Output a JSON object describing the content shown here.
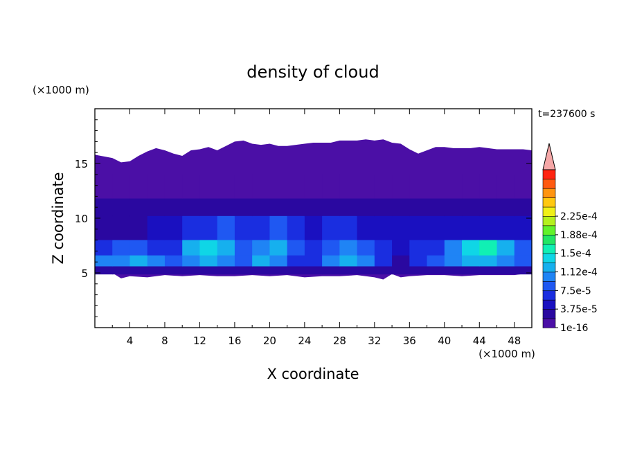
{
  "chart_data": {
    "type": "heatmap",
    "title": "density of cloud",
    "time_label": "t=237600 s",
    "xlabel": "X coordinate",
    "ylabel": "Z coordinate",
    "x_unit": "(×1000 m)",
    "y_unit": "(×1000 m)",
    "xlim": [
      0,
      50
    ],
    "ylim": [
      0,
      20
    ],
    "x_ticks": [
      4,
      8,
      12,
      16,
      20,
      24,
      28,
      32,
      36,
      40,
      44,
      48
    ],
    "y_ticks": [
      5,
      10,
      15
    ],
    "colorbar": {
      "min": 1e-16,
      "max": 0.00025,
      "step": 1.875e-05,
      "extend": "max",
      "tick_labels": [
        "1e-16",
        "3.75e-5",
        "7.5e-5",
        "1.12e-4",
        "1.5e-4",
        "1.88e-4",
        "2.25e-4"
      ],
      "colors": [
        "#4b0fa6",
        "#2a08a0",
        "#1a10c0",
        "#1a2ee0",
        "#1f58f2",
        "#1f84f5",
        "#16b0ee",
        "#0fd6e6",
        "#10f0b4",
        "#22e664",
        "#62f22a",
        "#b4f01c",
        "#f0f018",
        "#ffc810",
        "#ff9410",
        "#ff5a10",
        "#ff2410"
      ],
      "over_color": "#f5a7a7"
    },
    "cloud_layer": {
      "top_boundary": [
        [
          0,
          15.8
        ],
        [
          2,
          15.5
        ],
        [
          3,
          15.1
        ],
        [
          4,
          15.2
        ],
        [
          5,
          15.7
        ],
        [
          6,
          16.1
        ],
        [
          7,
          16.4
        ],
        [
          8,
          16.2
        ],
        [
          9,
          15.9
        ],
        [
          10,
          15.7
        ],
        [
          11,
          16.2
        ],
        [
          12,
          16.3
        ],
        [
          13,
          16.5
        ],
        [
          14,
          16.2
        ],
        [
          15,
          16.6
        ],
        [
          16,
          17.0
        ],
        [
          17,
          17.1
        ],
        [
          18,
          16.8
        ],
        [
          19,
          16.7
        ],
        [
          20,
          16.8
        ],
        [
          21,
          16.6
        ],
        [
          22,
          16.6
        ],
        [
          23,
          16.7
        ],
        [
          24,
          16.8
        ],
        [
          25,
          16.9
        ],
        [
          26,
          16.9
        ],
        [
          27,
          16.9
        ],
        [
          28,
          17.1
        ],
        [
          29,
          17.1
        ],
        [
          30,
          17.1
        ],
        [
          31,
          17.2
        ],
        [
          32,
          17.1
        ],
        [
          33,
          17.2
        ],
        [
          34,
          16.9
        ],
        [
          35,
          16.8
        ],
        [
          36,
          16.3
        ],
        [
          37,
          15.9
        ],
        [
          38,
          16.2
        ],
        [
          39,
          16.5
        ],
        [
          40,
          16.5
        ],
        [
          41,
          16.4
        ],
        [
          42,
          16.4
        ],
        [
          43,
          16.4
        ],
        [
          44,
          16.5
        ],
        [
          45,
          16.4
        ],
        [
          46,
          16.3
        ],
        [
          47,
          16.3
        ],
        [
          48,
          16.3
        ],
        [
          49,
          16.3
        ],
        [
          50,
          16.2
        ]
      ],
      "bottom_boundary": [
        [
          0,
          5.3
        ],
        [
          2,
          5.0
        ],
        [
          3,
          4.5
        ],
        [
          4,
          4.7
        ],
        [
          6,
          4.6
        ],
        [
          8,
          4.8
        ],
        [
          10,
          4.7
        ],
        [
          12,
          4.8
        ],
        [
          14,
          4.7
        ],
        [
          16,
          4.7
        ],
        [
          18,
          4.8
        ],
        [
          20,
          4.7
        ],
        [
          22,
          4.8
        ],
        [
          24,
          4.6
        ],
        [
          26,
          4.7
        ],
        [
          28,
          4.7
        ],
        [
          30,
          4.8
        ],
        [
          32,
          4.6
        ],
        [
          33,
          4.4
        ],
        [
          34,
          4.9
        ],
        [
          35,
          4.6
        ],
        [
          36,
          4.7
        ],
        [
          38,
          4.8
        ],
        [
          40,
          4.8
        ],
        [
          42,
          4.7
        ],
        [
          44,
          4.8
        ],
        [
          46,
          4.8
        ],
        [
          48,
          4.8
        ],
        [
          50,
          5.0
        ]
      ]
    },
    "cells": [
      {
        "x": 0,
        "z": 13,
        "v": 1e-05
      },
      {
        "x": 0,
        "z": 11,
        "v": 2e-05
      },
      {
        "x": 0,
        "z": 9,
        "v": 3e-05
      },
      {
        "x": 0,
        "z": 7,
        "v": 6e-05
      },
      {
        "x": 0,
        "z": 6,
        "v": 0.0001
      },
      {
        "x": 0,
        "z": 5,
        "v": 2e-05
      },
      {
        "x": 2,
        "z": 13,
        "v": 1e-05
      },
      {
        "x": 2,
        "z": 11,
        "v": 2e-05
      },
      {
        "x": 2,
        "z": 9,
        "v": 3e-05
      },
      {
        "x": 2,
        "z": 7,
        "v": 8e-05
      },
      {
        "x": 2,
        "z": 6,
        "v": 0.00011
      },
      {
        "x": 2,
        "z": 5,
        "v": 2e-05
      },
      {
        "x": 4,
        "z": 13,
        "v": 1e-05
      },
      {
        "x": 4,
        "z": 11,
        "v": 2e-05
      },
      {
        "x": 4,
        "z": 9,
        "v": 3e-05
      },
      {
        "x": 4,
        "z": 7,
        "v": 9e-05
      },
      {
        "x": 4,
        "z": 6,
        "v": 0.00012
      },
      {
        "x": 4,
        "z": 5,
        "v": 2e-05
      },
      {
        "x": 6,
        "z": 13,
        "v": 1e-05
      },
      {
        "x": 6,
        "z": 11,
        "v": 2e-05
      },
      {
        "x": 6,
        "z": 9,
        "v": 4e-05
      },
      {
        "x": 6,
        "z": 7,
        "v": 7e-05
      },
      {
        "x": 6,
        "z": 6,
        "v": 0.0001
      },
      {
        "x": 6,
        "z": 5,
        "v": 2e-05
      },
      {
        "x": 8,
        "z": 13,
        "v": 1e-05
      },
      {
        "x": 8,
        "z": 11,
        "v": 2e-05
      },
      {
        "x": 8,
        "z": 9,
        "v": 5e-05
      },
      {
        "x": 8,
        "z": 7,
        "v": 6e-05
      },
      {
        "x": 8,
        "z": 6,
        "v": 8e-05
      },
      {
        "x": 8,
        "z": 5,
        "v": 2e-05
      },
      {
        "x": 10,
        "z": 13,
        "v": 1e-05
      },
      {
        "x": 10,
        "z": 11,
        "v": 2e-05
      },
      {
        "x": 10,
        "z": 9,
        "v": 6e-05
      },
      {
        "x": 10,
        "z": 7,
        "v": 0.00013
      },
      {
        "x": 10,
        "z": 6,
        "v": 0.00011
      },
      {
        "x": 10,
        "z": 5,
        "v": 2e-05
      },
      {
        "x": 12,
        "z": 13,
        "v": 1e-05
      },
      {
        "x": 12,
        "z": 11,
        "v": 2e-05
      },
      {
        "x": 12,
        "z": 9,
        "v": 7e-05
      },
      {
        "x": 12,
        "z": 7,
        "v": 0.00015
      },
      {
        "x": 12,
        "z": 6,
        "v": 0.00012
      },
      {
        "x": 12,
        "z": 5,
        "v": 2e-05
      },
      {
        "x": 14,
        "z": 13,
        "v": 1e-05
      },
      {
        "x": 14,
        "z": 11,
        "v": 3e-05
      },
      {
        "x": 14,
        "z": 9,
        "v": 8e-05
      },
      {
        "x": 14,
        "z": 7,
        "v": 0.00012
      },
      {
        "x": 14,
        "z": 6,
        "v": 0.0001
      },
      {
        "x": 14,
        "z": 5,
        "v": 2e-05
      },
      {
        "x": 16,
        "z": 13,
        "v": 1e-05
      },
      {
        "x": 16,
        "z": 11,
        "v": 2e-05
      },
      {
        "x": 16,
        "z": 9,
        "v": 6e-05
      },
      {
        "x": 16,
        "z": 7,
        "v": 9e-05
      },
      {
        "x": 16,
        "z": 6,
        "v": 8e-05
      },
      {
        "x": 16,
        "z": 5,
        "v": 2e-05
      },
      {
        "x": 18,
        "z": 13,
        "v": 1e-05
      },
      {
        "x": 18,
        "z": 11,
        "v": 2e-05
      },
      {
        "x": 18,
        "z": 9,
        "v": 7e-05
      },
      {
        "x": 18,
        "z": 7,
        "v": 0.00011
      },
      {
        "x": 18,
        "z": 6,
        "v": 0.00012
      },
      {
        "x": 18,
        "z": 5,
        "v": 2e-05
      },
      {
        "x": 20,
        "z": 13,
        "v": 1e-05
      },
      {
        "x": 20,
        "z": 11,
        "v": 2e-05
      },
      {
        "x": 20,
        "z": 9,
        "v": 8e-05
      },
      {
        "x": 20,
        "z": 7,
        "v": 0.00012
      },
      {
        "x": 20,
        "z": 6,
        "v": 0.00011
      },
      {
        "x": 20,
        "z": 5,
        "v": 2e-05
      },
      {
        "x": 22,
        "z": 13,
        "v": 1e-05
      },
      {
        "x": 22,
        "z": 11,
        "v": 2e-05
      },
      {
        "x": 22,
        "z": 9,
        "v": 6e-05
      },
      {
        "x": 22,
        "z": 7,
        "v": 9e-05
      },
      {
        "x": 22,
        "z": 6,
        "v": 7e-05
      },
      {
        "x": 22,
        "z": 5,
        "v": 2e-05
      },
      {
        "x": 24,
        "z": 13,
        "v": 1e-05
      },
      {
        "x": 24,
        "z": 11,
        "v": 2e-05
      },
      {
        "x": 24,
        "z": 9,
        "v": 5e-05
      },
      {
        "x": 24,
        "z": 7,
        "v": 6e-05
      },
      {
        "x": 24,
        "z": 6,
        "v": 6e-05
      },
      {
        "x": 24,
        "z": 5,
        "v": 2e-05
      },
      {
        "x": 26,
        "z": 13,
        "v": 1e-05
      },
      {
        "x": 26,
        "z": 11,
        "v": 2e-05
      },
      {
        "x": 26,
        "z": 9,
        "v": 6e-05
      },
      {
        "x": 26,
        "z": 7,
        "v": 8e-05
      },
      {
        "x": 26,
        "z": 6,
        "v": 0.0001
      },
      {
        "x": 26,
        "z": 5,
        "v": 2e-05
      },
      {
        "x": 28,
        "z": 13,
        "v": 1e-05
      },
      {
        "x": 28,
        "z": 11,
        "v": 2e-05
      },
      {
        "x": 28,
        "z": 9,
        "v": 6e-05
      },
      {
        "x": 28,
        "z": 7,
        "v": 0.0001
      },
      {
        "x": 28,
        "z": 6,
        "v": 0.00012
      },
      {
        "x": 28,
        "z": 5,
        "v": 2e-05
      },
      {
        "x": 30,
        "z": 13,
        "v": 1e-05
      },
      {
        "x": 30,
        "z": 11,
        "v": 2e-05
      },
      {
        "x": 30,
        "z": 9,
        "v": 5e-05
      },
      {
        "x": 30,
        "z": 7,
        "v": 8e-05
      },
      {
        "x": 30,
        "z": 6,
        "v": 0.0001
      },
      {
        "x": 30,
        "z": 5,
        "v": 2e-05
      },
      {
        "x": 32,
        "z": 13,
        "v": 1e-05
      },
      {
        "x": 32,
        "z": 11,
        "v": 2e-05
      },
      {
        "x": 32,
        "z": 9,
        "v": 5e-05
      },
      {
        "x": 32,
        "z": 7,
        "v": 7e-05
      },
      {
        "x": 32,
        "z": 6,
        "v": 7e-05
      },
      {
        "x": 32,
        "z": 5,
        "v": 2e-05
      },
      {
        "x": 34,
        "z": 13,
        "v": 1e-05
      },
      {
        "x": 34,
        "z": 11,
        "v": 2e-05
      },
      {
        "x": 34,
        "z": 9,
        "v": 4e-05
      },
      {
        "x": 34,
        "z": 7,
        "v": 4e-05
      },
      {
        "x": 34,
        "z": 6,
        "v": 3e-05
      },
      {
        "x": 34,
        "z": 5,
        "v": 2e-05
      },
      {
        "x": 36,
        "z": 13,
        "v": 1e-05
      },
      {
        "x": 36,
        "z": 11,
        "v": 2e-05
      },
      {
        "x": 36,
        "z": 9,
        "v": 4e-05
      },
      {
        "x": 36,
        "z": 7,
        "v": 6e-05
      },
      {
        "x": 36,
        "z": 6,
        "v": 6e-05
      },
      {
        "x": 36,
        "z": 5,
        "v": 2e-05
      },
      {
        "x": 38,
        "z": 13,
        "v": 1e-05
      },
      {
        "x": 38,
        "z": 11,
        "v": 2e-05
      },
      {
        "x": 38,
        "z": 9,
        "v": 4e-05
      },
      {
        "x": 38,
        "z": 7,
        "v": 7e-05
      },
      {
        "x": 38,
        "z": 6,
        "v": 8e-05
      },
      {
        "x": 38,
        "z": 5,
        "v": 2e-05
      },
      {
        "x": 40,
        "z": 13,
        "v": 1e-05
      },
      {
        "x": 40,
        "z": 11,
        "v": 2e-05
      },
      {
        "x": 40,
        "z": 9,
        "v": 4e-05
      },
      {
        "x": 40,
        "z": 7,
        "v": 0.0001
      },
      {
        "x": 40,
        "z": 6,
        "v": 0.0001
      },
      {
        "x": 40,
        "z": 5,
        "v": 2e-05
      },
      {
        "x": 42,
        "z": 13,
        "v": 1e-05
      },
      {
        "x": 42,
        "z": 11,
        "v": 2e-05
      },
      {
        "x": 42,
        "z": 9,
        "v": 4e-05
      },
      {
        "x": 42,
        "z": 7,
        "v": 0.00014
      },
      {
        "x": 42,
        "z": 6,
        "v": 0.00012
      },
      {
        "x": 42,
        "z": 5,
        "v": 2e-05
      },
      {
        "x": 44,
        "z": 13,
        "v": 1e-05
      },
      {
        "x": 44,
        "z": 11,
        "v": 2e-05
      },
      {
        "x": 44,
        "z": 9,
        "v": 4e-05
      },
      {
        "x": 44,
        "z": 7,
        "v": 0.00016
      },
      {
        "x": 44,
        "z": 6,
        "v": 0.00013
      },
      {
        "x": 44,
        "z": 5,
        "v": 2e-05
      },
      {
        "x": 46,
        "z": 13,
        "v": 1e-05
      },
      {
        "x": 46,
        "z": 11,
        "v": 2e-05
      },
      {
        "x": 46,
        "z": 9,
        "v": 4e-05
      },
      {
        "x": 46,
        "z": 7,
        "v": 0.00013
      },
      {
        "x": 46,
        "z": 6,
        "v": 0.00011
      },
      {
        "x": 46,
        "z": 5,
        "v": 2e-05
      },
      {
        "x": 48,
        "z": 13,
        "v": 1e-05
      },
      {
        "x": 48,
        "z": 11,
        "v": 2e-05
      },
      {
        "x": 48,
        "z": 9,
        "v": 4e-05
      },
      {
        "x": 48,
        "z": 7,
        "v": 9e-05
      },
      {
        "x": 48,
        "z": 6,
        "v": 8e-05
      },
      {
        "x": 48,
        "z": 5,
        "v": 2e-05
      }
    ]
  }
}
